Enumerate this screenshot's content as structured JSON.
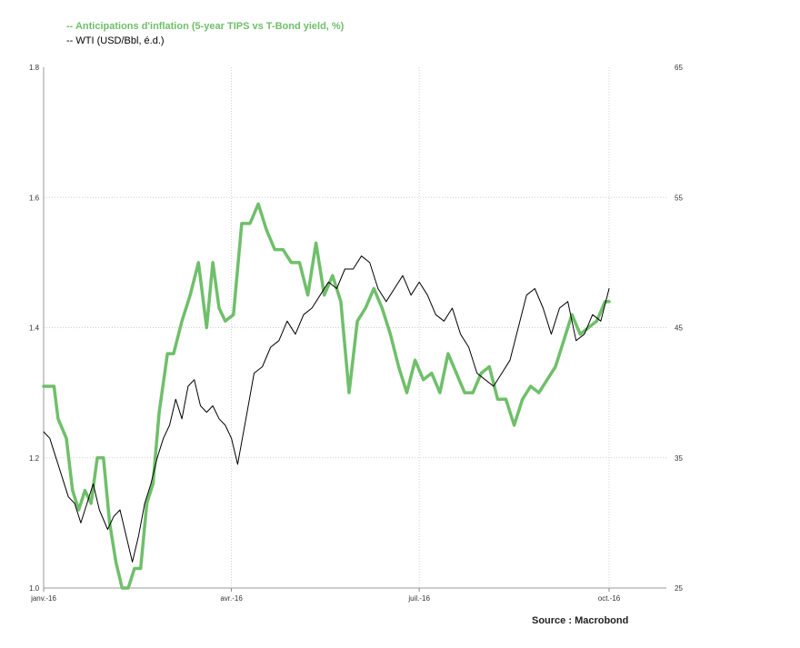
{
  "chart_data": {
    "type": "line",
    "title": "",
    "xlabel": "",
    "x_ticks": [
      "janv.-16",
      "avr.-16",
      "juil.-16",
      "oct.-16"
    ],
    "y_left": {
      "ylim": [
        1.0,
        1.8
      ],
      "ticks": [
        "1.0",
        "1.2",
        "1.4",
        "1.6",
        "1.8"
      ]
    },
    "y_right": {
      "ylim": [
        25,
        65
      ],
      "ticks": [
        "25",
        "35",
        "45",
        "55",
        "65"
      ]
    },
    "grid": true,
    "legend_position": "top-left",
    "series": [
      {
        "name": "-- Anticipations d'inflation (5-year TIPS vs T-Bond yield, %)",
        "axis": "left",
        "color": "#6fbf6a",
        "x": [
          "2016-01-01",
          "2016-01-06",
          "2016-01-08",
          "2016-01-12",
          "2016-01-15",
          "2016-01-18",
          "2016-01-21",
          "2016-01-24",
          "2016-01-27",
          "2016-01-30",
          "2016-02-02",
          "2016-02-05",
          "2016-02-08",
          "2016-02-11",
          "2016-02-14",
          "2016-02-17",
          "2016-02-20",
          "2016-02-23",
          "2016-02-26",
          "2016-03-01",
          "2016-03-04",
          "2016-03-08",
          "2016-03-12",
          "2016-03-16",
          "2016-03-20",
          "2016-03-23",
          "2016-03-26",
          "2016-03-29",
          "2016-04-02",
          "2016-04-06",
          "2016-04-10",
          "2016-04-14",
          "2016-04-18",
          "2016-04-22",
          "2016-04-26",
          "2016-04-30",
          "2016-05-04",
          "2016-05-08",
          "2016-05-12",
          "2016-05-16",
          "2016-05-20",
          "2016-05-24",
          "2016-05-28",
          "2016-06-01",
          "2016-06-05",
          "2016-06-09",
          "2016-06-13",
          "2016-06-17",
          "2016-06-21",
          "2016-06-25",
          "2016-06-29",
          "2016-07-03",
          "2016-07-07",
          "2016-07-11",
          "2016-07-15",
          "2016-07-19",
          "2016-07-23",
          "2016-07-27",
          "2016-07-31",
          "2016-08-04",
          "2016-08-08",
          "2016-08-12",
          "2016-08-16",
          "2016-08-20",
          "2016-08-24",
          "2016-08-28",
          "2016-09-01",
          "2016-09-05",
          "2016-09-09",
          "2016-09-13",
          "2016-09-17",
          "2016-09-21",
          "2016-09-25",
          "2016-09-29",
          "2016-10-01"
        ],
        "values": [
          1.31,
          1.31,
          1.26,
          1.23,
          1.15,
          1.12,
          1.15,
          1.13,
          1.2,
          1.2,
          1.1,
          1.04,
          1.0,
          1.0,
          1.03,
          1.03,
          1.13,
          1.16,
          1.27,
          1.36,
          1.36,
          1.41,
          1.45,
          1.5,
          1.4,
          1.5,
          1.43,
          1.41,
          1.42,
          1.56,
          1.56,
          1.59,
          1.55,
          1.52,
          1.52,
          1.5,
          1.5,
          1.45,
          1.53,
          1.45,
          1.48,
          1.44,
          1.3,
          1.41,
          1.43,
          1.46,
          1.43,
          1.39,
          1.34,
          1.3,
          1.35,
          1.32,
          1.33,
          1.3,
          1.36,
          1.33,
          1.3,
          1.3,
          1.33,
          1.34,
          1.29,
          1.29,
          1.25,
          1.29,
          1.31,
          1.3,
          1.32,
          1.34,
          1.38,
          1.42,
          1.39,
          1.4,
          1.41,
          1.44,
          1.44
        ]
      },
      {
        "name": "-- WTI (USD/Bbl, é.d.)",
        "axis": "right",
        "color": "#000000",
        "x": [
          "2016-01-01",
          "2016-01-04",
          "2016-01-07",
          "2016-01-10",
          "2016-01-13",
          "2016-01-16",
          "2016-01-19",
          "2016-01-22",
          "2016-01-25",
          "2016-01-28",
          "2016-02-01",
          "2016-02-04",
          "2016-02-07",
          "2016-02-10",
          "2016-02-13",
          "2016-02-16",
          "2016-02-19",
          "2016-02-22",
          "2016-02-25",
          "2016-02-28",
          "2016-03-02",
          "2016-03-05",
          "2016-03-08",
          "2016-03-11",
          "2016-03-14",
          "2016-03-17",
          "2016-03-20",
          "2016-03-23",
          "2016-03-26",
          "2016-03-29",
          "2016-04-01",
          "2016-04-04",
          "2016-04-08",
          "2016-04-12",
          "2016-04-16",
          "2016-04-20",
          "2016-04-24",
          "2016-04-28",
          "2016-05-02",
          "2016-05-06",
          "2016-05-10",
          "2016-05-14",
          "2016-05-18",
          "2016-05-22",
          "2016-05-26",
          "2016-05-30",
          "2016-06-03",
          "2016-06-07",
          "2016-06-11",
          "2016-06-15",
          "2016-06-19",
          "2016-06-23",
          "2016-06-27",
          "2016-07-01",
          "2016-07-05",
          "2016-07-09",
          "2016-07-13",
          "2016-07-17",
          "2016-07-21",
          "2016-07-25",
          "2016-07-29",
          "2016-08-02",
          "2016-08-06",
          "2016-08-10",
          "2016-08-14",
          "2016-08-18",
          "2016-08-22",
          "2016-08-26",
          "2016-08-30",
          "2016-09-03",
          "2016-09-07",
          "2016-09-11",
          "2016-09-15",
          "2016-09-19",
          "2016-09-23",
          "2016-09-27",
          "2016-10-01"
        ],
        "values": [
          37.0,
          36.5,
          35.0,
          33.5,
          32.0,
          31.5,
          30.0,
          31.5,
          33.0,
          31.0,
          29.5,
          30.5,
          31.0,
          29.0,
          27.0,
          29.0,
          31.5,
          33.0,
          35.0,
          36.5,
          37.5,
          39.5,
          38.0,
          40.5,
          41.0,
          39.0,
          38.5,
          39.0,
          38.0,
          37.5,
          36.5,
          34.5,
          38.0,
          41.5,
          42.0,
          43.5,
          44.0,
          45.5,
          44.5,
          46.0,
          46.5,
          47.5,
          48.5,
          48.0,
          49.5,
          49.5,
          50.5,
          50.0,
          48.0,
          47.0,
          48.0,
          49.0,
          47.5,
          48.5,
          47.5,
          46.0,
          45.5,
          46.5,
          44.5,
          43.5,
          41.5,
          41.0,
          40.5,
          41.5,
          42.5,
          45.0,
          47.5,
          48.0,
          46.5,
          44.5,
          46.5,
          47.0,
          44.0,
          44.5,
          46.0,
          45.5,
          48.0
        ]
      }
    ],
    "source": "Source : Macrobond"
  }
}
